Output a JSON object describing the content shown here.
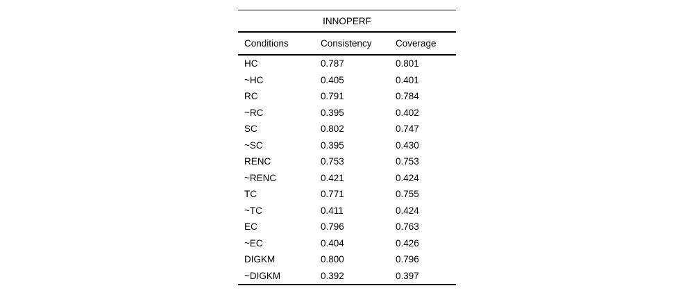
{
  "table": {
    "title": "INNOPERF",
    "columns": [
      "Conditions",
      "Consistency",
      "Coverage"
    ],
    "rows": [
      {
        "condition": "HC",
        "consistency": "0.787",
        "coverage": "0.801"
      },
      {
        "condition": "~HC",
        "consistency": "0.405",
        "coverage": "0.401"
      },
      {
        "condition": "RC",
        "consistency": "0.791",
        "coverage": "0.784"
      },
      {
        "condition": "~RC",
        "consistency": "0.395",
        "coverage": "0.402"
      },
      {
        "condition": "SC",
        "consistency": "0.802",
        "coverage": "0.747"
      },
      {
        "condition": "~SC",
        "consistency": "0.395",
        "coverage": "0.430"
      },
      {
        "condition": "RENC",
        "consistency": "0.753",
        "coverage": "0.753"
      },
      {
        "condition": "~RENC",
        "consistency": "0.421",
        "coverage": "0.424"
      },
      {
        "condition": "TC",
        "consistency": "0.771",
        "coverage": "0.755"
      },
      {
        "condition": "~TC",
        "consistency": "0.411",
        "coverage": "0.424"
      },
      {
        "condition": "EC",
        "consistency": "0.796",
        "coverage": "0.763"
      },
      {
        "condition": "~EC",
        "consistency": "0.404",
        "coverage": "0.426"
      },
      {
        "condition": "DIGKM",
        "consistency": "0.800",
        "coverage": "0.796"
      },
      {
        "condition": "~DIGKM",
        "consistency": "0.392",
        "coverage": "0.397"
      }
    ],
    "colors": {
      "text": "#000000",
      "background": "#ffffff",
      "rule": "#000000"
    }
  }
}
